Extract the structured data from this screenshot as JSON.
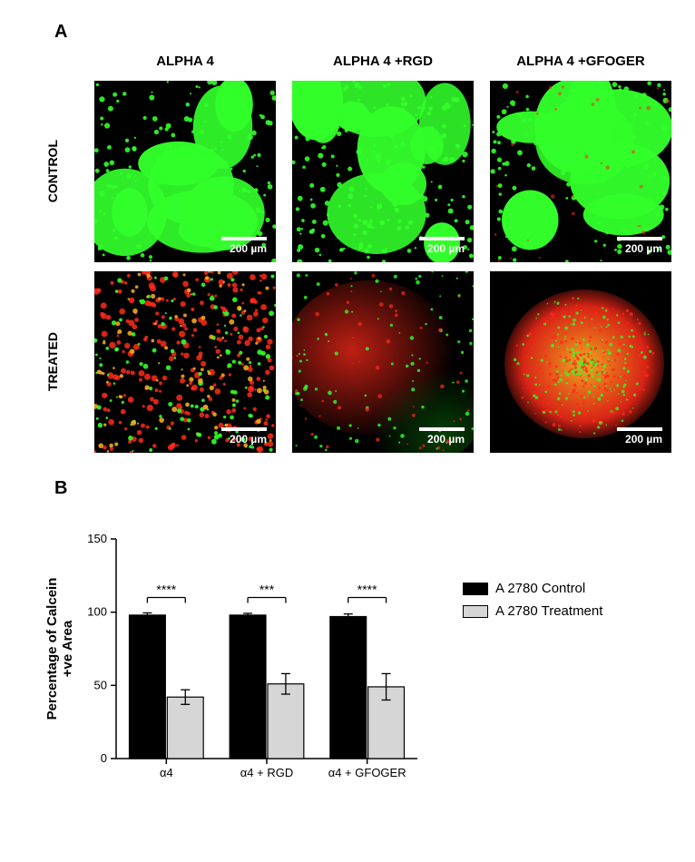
{
  "panelA": {
    "letter": "A",
    "col_headers": [
      "ALPHA 4",
      "ALPHA 4 +RGD",
      "ALPHA 4 +GFOGER"
    ],
    "row_headers": [
      "CONTROL",
      "TREATED"
    ],
    "scalebar_label": "200 µm",
    "image_bg": "#000000",
    "green": "#32ff2a",
    "red": "#ff2a1a",
    "orange": "#ffb020"
  },
  "panelB": {
    "letter": "B",
    "chart": {
      "type": "bar",
      "ylabel_line1": "Percentage of Calcein",
      "ylabel_line2": "+ve Area",
      "y_label_fontsize": 15,
      "ylim": [
        0,
        150
      ],
      "ytick_step": 50,
      "yticks": [
        0,
        50,
        100,
        150
      ],
      "categories": [
        "α4",
        "α4 + RGD",
        "α4 + GFOGER"
      ],
      "series": [
        {
          "name": "A 2780 Control",
          "color": "#000000",
          "stroke": "#000000",
          "values": [
            98,
            98,
            97
          ],
          "err": [
            1.5,
            1.2,
            1.8
          ]
        },
        {
          "name": "A 2780 Treatment",
          "color": "#d6d6d6",
          "stroke": "#000000",
          "values": [
            42,
            51,
            49
          ],
          "err": [
            5,
            7,
            9
          ]
        }
      ],
      "significance": [
        "****",
        "***",
        "****"
      ],
      "sig_bracket_y": 110,
      "bar_width_rel": 0.36,
      "group_gap_rel": 0.28,
      "axis_color": "#000000",
      "tick_fontsize": 13,
      "cat_fontsize": 13,
      "sig_fontsize": 14
    },
    "legend": {
      "items": [
        {
          "label": "A 2780 Control",
          "color": "#000000"
        },
        {
          "label": "A 2780 Treatment",
          "color": "#d6d6d6"
        }
      ]
    }
  }
}
